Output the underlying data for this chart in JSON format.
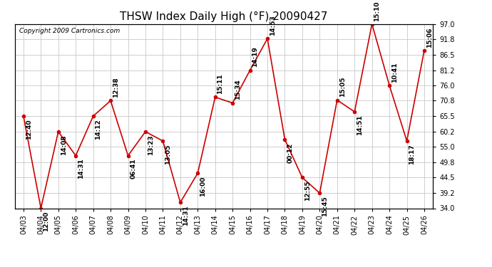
{
  "title": "THSW Index Daily High (°F) 20090427",
  "copyright": "Copyright 2009 Cartronics.com",
  "dates": [
    "04/03",
    "04/04",
    "04/05",
    "04/06",
    "04/07",
    "04/08",
    "04/09",
    "04/10",
    "04/11",
    "04/12",
    "04/13",
    "04/14",
    "04/15",
    "04/16",
    "04/17",
    "04/18",
    "04/19",
    "04/20",
    "04/21",
    "04/22",
    "04/23",
    "04/24",
    "04/25",
    "04/26"
  ],
  "values": [
    65.5,
    34.0,
    60.2,
    52.0,
    65.5,
    70.8,
    52.0,
    60.2,
    57.0,
    36.0,
    46.0,
    72.0,
    70.0,
    81.2,
    92.0,
    57.5,
    44.5,
    39.2,
    71.0,
    67.0,
    97.0,
    76.0,
    57.0,
    88.0
  ],
  "labels": [
    "12:40",
    "12:00",
    "14:08",
    "14:31",
    "14:12",
    "12:38",
    "06:41",
    "13:23",
    "13:05",
    "14:31",
    "16:00",
    "15:11",
    "15:34",
    "14:19",
    "14:53",
    "00:12",
    "12:55",
    "15:45",
    "15:05",
    "14:51",
    "15:10",
    "10:41",
    "18:17",
    "15:06"
  ],
  "line_color": "#cc0000",
  "marker_color": "#cc0000",
  "background_color": "#ffffff",
  "grid_color": "#c8c8c8",
  "title_fontsize": 11,
  "label_fontsize": 6.5,
  "tick_fontsize": 7,
  "ylim_min": 34.0,
  "ylim_max": 97.0,
  "yticks": [
    34.0,
    39.2,
    44.5,
    49.8,
    55.0,
    60.2,
    65.5,
    70.8,
    76.0,
    81.2,
    86.5,
    91.8,
    97.0
  ]
}
